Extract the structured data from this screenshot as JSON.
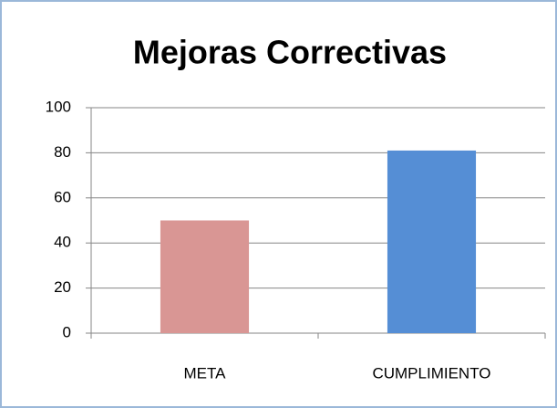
{
  "chart_data": {
    "type": "bar",
    "title": "Mejoras Correctivas",
    "categories": [
      "META",
      "CUMPLIMIENTO"
    ],
    "values": [
      50,
      81
    ],
    "colors": [
      "#d99694",
      "#558ed5"
    ],
    "ylim": [
      0,
      100
    ],
    "yticks": [
      0,
      20,
      40,
      60,
      80,
      100
    ],
    "grid": true
  }
}
